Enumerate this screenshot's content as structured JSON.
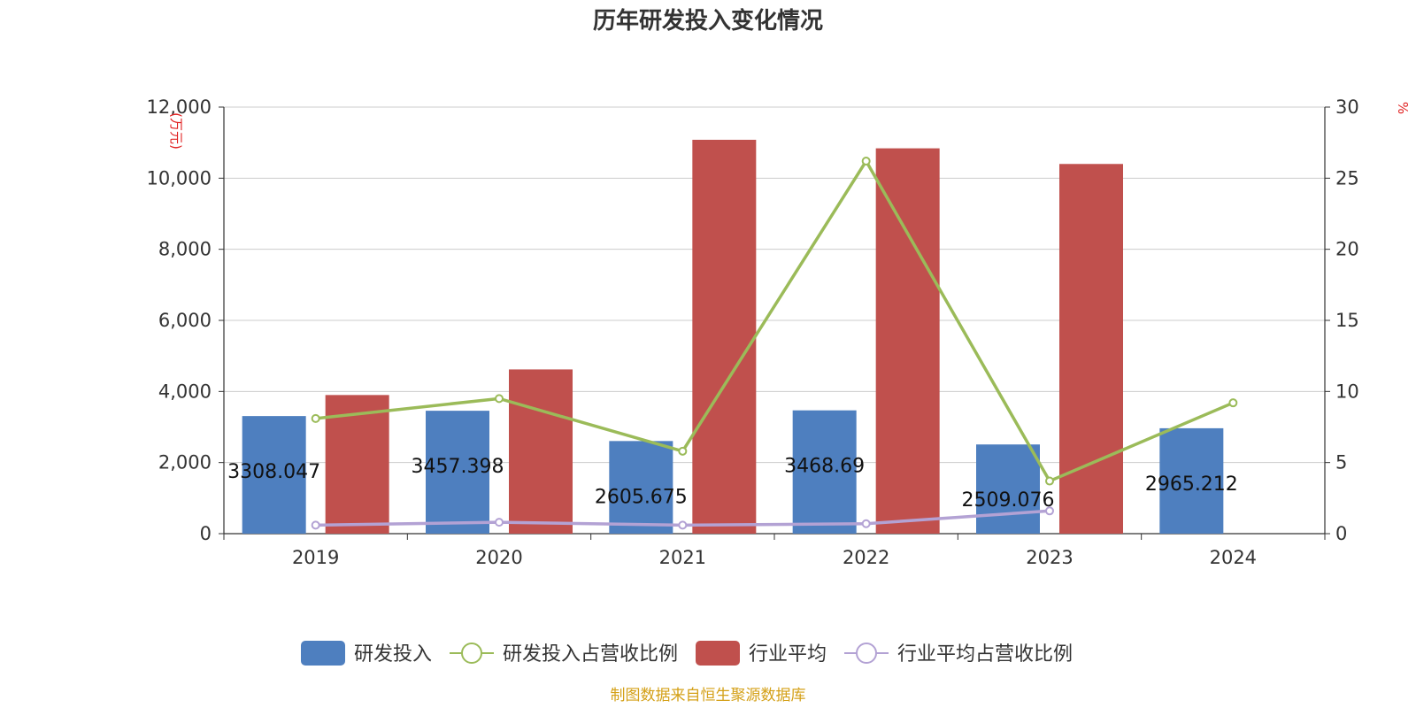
{
  "chart_data": {
    "type": "bar",
    "title": "历年研发投入变化情况",
    "categories": [
      "2019",
      "2020",
      "2021",
      "2022",
      "2023",
      "2024"
    ],
    "y_left": {
      "unit": "(万元)",
      "ylim": [
        0,
        12000
      ],
      "ticks": [
        "0",
        "2,000",
        "4,000",
        "6,000",
        "8,000",
        "10,000",
        "12,000"
      ]
    },
    "y_right": {
      "unit": "%",
      "ylim": [
        0,
        30
      ],
      "ticks": [
        "0",
        "5",
        "10",
        "15",
        "20",
        "25",
        "30"
      ]
    },
    "grid": true,
    "legend_position": "bottom",
    "series": [
      {
        "name": "研发投入",
        "type": "bar",
        "axis": "left",
        "color": "#4e7fbf",
        "values": [
          3308.047,
          3457.398,
          2605.675,
          3468.69,
          2509.076,
          2965.212
        ],
        "labels": [
          "3308.047",
          "3457.398",
          "2605.675",
          "3468.69",
          "2509.076",
          "2965.212"
        ]
      },
      {
        "name": "研发投入占营收比例",
        "type": "line",
        "axis": "right",
        "color": "#9bbb59",
        "values": [
          8.1,
          9.5,
          5.8,
          26.2,
          3.7,
          9.2
        ]
      },
      {
        "name": "行业平均",
        "type": "bar",
        "axis": "left",
        "color": "#c0504d",
        "values": [
          3900,
          4620,
          11080,
          10840,
          10400,
          null
        ]
      },
      {
        "name": "行业平均占营收比例",
        "type": "line",
        "axis": "right",
        "color": "#b3a2d4",
        "values": [
          0.6,
          0.8,
          0.6,
          0.7,
          1.6,
          null
        ]
      }
    ]
  },
  "footer": {
    "source": "制图数据来自恒生聚源数据库"
  }
}
